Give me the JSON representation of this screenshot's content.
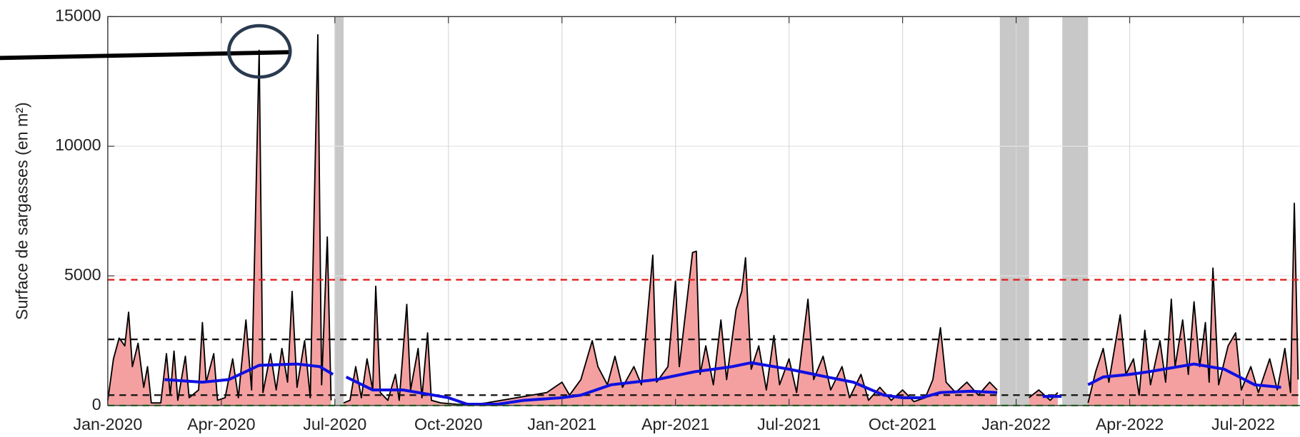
{
  "chart_data": {
    "type": "line",
    "ylabel": "Surface de sargasses (en m²)",
    "xlim": [
      0,
      31.5
    ],
    "ylim": [
      0,
      15000
    ],
    "yticks": [
      0,
      5000,
      10000,
      15000
    ],
    "xticks": [
      {
        "value": 0,
        "label": "Jan-2020"
      },
      {
        "value": 3,
        "label": "Apr-2020"
      },
      {
        "value": 6,
        "label": "Jul-2020"
      },
      {
        "value": 9,
        "label": "Oct-2020"
      },
      {
        "value": 12,
        "label": "Jan-2021"
      },
      {
        "value": 15,
        "label": "Apr-2021"
      },
      {
        "value": 18,
        "label": "Jul-2021"
      },
      {
        "value": 21,
        "label": "Oct-2021"
      },
      {
        "value": 24,
        "label": "Jan-2022"
      },
      {
        "value": 27,
        "label": "Apr-2022"
      },
      {
        "value": 30,
        "label": "Jul-2022"
      }
    ],
    "grid": true,
    "shaded_regions": [
      [
        5.99,
        6.23
      ],
      [
        23.57,
        24.34
      ],
      [
        25.22,
        25.9
      ]
    ],
    "reference_lines": [
      {
        "value": 4850,
        "color": "#e0201e"
      },
      {
        "value": 2550,
        "color": "#111111"
      },
      {
        "value": 400,
        "color": "#111111"
      },
      {
        "value": 0,
        "color": "#22aa22"
      }
    ],
    "series": [
      {
        "color": "#000000",
        "fill": "#f4a0a0",
        "x": [
          0,
          0.15,
          0.3,
          0.45,
          0.55,
          0.65,
          0.8,
          0.95,
          1.05,
          1.15,
          1.4,
          1.55,
          1.65,
          1.75,
          1.85,
          2.05,
          2.15,
          2.4,
          2.5,
          2.6,
          2.8,
          2.9,
          3.1,
          3.3,
          3.45,
          3.65,
          3.8,
          4.0,
          4.1,
          4.3,
          4.45,
          4.6,
          4.75,
          4.87,
          5.0,
          5.2,
          5.35,
          5.55,
          5.65,
          5.8,
          5.9,
          6.0,
          6.23,
          6.4,
          6.55,
          6.7,
          6.85,
          7.0,
          7.08,
          7.2,
          7.4,
          7.6,
          7.7,
          7.9,
          8.0,
          8.2,
          8.3,
          8.45,
          8.55,
          8.8,
          9.2,
          9.6,
          10.0,
          10.4,
          10.8,
          11.2,
          11.6,
          12.0,
          12.2,
          12.5,
          12.8,
          12.95,
          13.2,
          13.4,
          13.6,
          13.9,
          14.1,
          14.4,
          14.5,
          14.8,
          15.0,
          15.1,
          15.45,
          15.55,
          15.65,
          15.8,
          16.0,
          16.2,
          16.35,
          16.6,
          16.75,
          16.85,
          17.0,
          17.2,
          17.4,
          17.6,
          17.75,
          18.0,
          18.2,
          18.5,
          18.65,
          18.9,
          19.1,
          19.4,
          19.6,
          19.9,
          20.1,
          20.4,
          20.7,
          21.0,
          21.3,
          21.6,
          21.8,
          22.0,
          22.15,
          22.4,
          22.7,
          23.0,
          23.3,
          23.5,
          23.57,
          24.34,
          24.6,
          24.9,
          25.1,
          25.22,
          25.9,
          26.1,
          26.3,
          26.45,
          26.75,
          26.9,
          27.1,
          27.25,
          27.4,
          27.55,
          27.8,
          27.95,
          28.1,
          28.2,
          28.4,
          28.55,
          28.7,
          28.85,
          29.0,
          29.1,
          29.2,
          29.35,
          29.6,
          29.8,
          29.95,
          30.2,
          30.4,
          30.7,
          30.9,
          31.1,
          31.25,
          31.35,
          31.45
        ],
        "values": [
          200,
          1800,
          2600,
          2300,
          3600,
          1500,
          2400,
          700,
          1500,
          100,
          100,
          2000,
          400,
          2100,
          200,
          1900,
          300,
          600,
          3200,
          900,
          2000,
          200,
          300,
          1800,
          300,
          3300,
          600,
          13700,
          500,
          2000,
          600,
          2200,
          900,
          4400,
          700,
          2500,
          300,
          14300,
          800,
          6500,
          200,
          null,
          100,
          200,
          1500,
          300,
          1800,
          600,
          4600,
          500,
          200,
          1200,
          200,
          3900,
          600,
          2200,
          300,
          2800,
          200,
          100,
          50,
          30,
          100,
          200,
          300,
          400,
          500,
          900,
          400,
          1000,
          2500,
          1500,
          800,
          1900,
          700,
          1500,
          800,
          5800,
          900,
          1500,
          4800,
          1500,
          5900,
          5950,
          1200,
          2300,
          800,
          3300,
          1000,
          3700,
          4400,
          5700,
          1400,
          2300,
          600,
          2700,
          800,
          1800,
          500,
          4100,
          1000,
          1900,
          600,
          1500,
          300,
          1200,
          200,
          700,
          200,
          600,
          150,
          300,
          1000,
          3000,
          900,
          500,
          900,
          400,
          900,
          600,
          null,
          300,
          600,
          200,
          500,
          null,
          100,
          1300,
          2200,
          900,
          3500,
          1200,
          1800,
          400,
          2900,
          800,
          2500,
          900,
          4100,
          1500,
          3300,
          1200,
          4000,
          1500,
          3200,
          900,
          5300,
          800,
          2300,
          2800,
          600,
          1500,
          500,
          1800,
          600,
          2200,
          500,
          7800,
          1000
        ]
      },
      {
        "color": "#1010e0",
        "x": [
          1.5,
          2.5,
          3.2,
          4.0,
          5.0,
          5.6,
          5.95,
          6.1,
          6.3,
          7.0,
          7.8,
          9.0,
          9.5,
          10.3,
          11.0,
          12.0,
          12.5,
          13.3,
          14.5,
          15.5,
          16.5,
          17.0,
          18.0,
          19.0,
          19.7,
          20.5,
          21.0,
          21.5,
          22.0,
          22.8,
          23.5,
          23.6,
          24.7,
          25.2,
          25.5,
          25.9,
          26.3,
          27.0,
          27.5,
          28.3,
          28.7,
          29.5,
          30.3,
          31.0
        ],
        "values": [
          1000,
          900,
          1000,
          1550,
          1600,
          1500,
          1200,
          null,
          1100,
          600,
          600,
          300,
          50,
          50,
          200,
          300,
          400,
          800,
          1000,
          1300,
          1500,
          1650,
          1400,
          1100,
          900,
          400,
          300,
          300,
          500,
          550,
          500,
          null,
          350,
          350,
          null,
          800,
          1100,
          1200,
          1300,
          1500,
          1600,
          1400,
          800,
          700
        ]
      }
    ]
  }
}
